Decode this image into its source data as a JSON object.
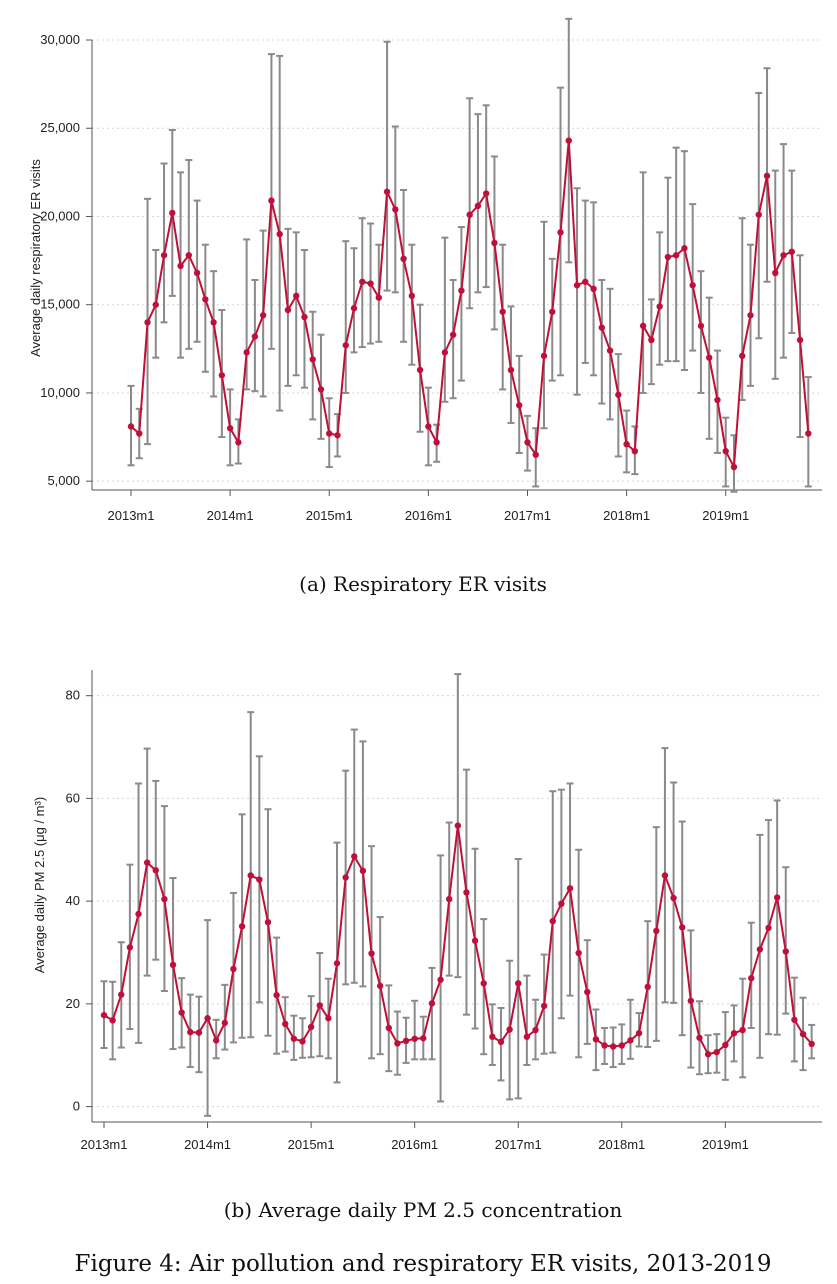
{
  "colors": {
    "series": "#c0103a",
    "errorbar": "#8a8a8a"
  },
  "panels": [
    {
      "caption": "(a) Respiratory ER visits",
      "chart_data": {
        "type": "line",
        "ylabel": "Average daily respiratory ER visits",
        "xlabel": "",
        "ylim": [
          4500,
          30000
        ],
        "yticks": [
          5000,
          10000,
          15000,
          20000,
          25000,
          30000
        ],
        "ytick_labels": [
          "5,000",
          "10,000",
          "15,000",
          "20,000",
          "25,000",
          "30,000"
        ],
        "xticks": [
          "2013m1",
          "2014m1",
          "2015m1",
          "2016m1",
          "2017m1",
          "2018m1",
          "2019m1"
        ],
        "grid": true,
        "error_bars": true,
        "x_start": "2013m1",
        "series": [
          {
            "values": [
              8100,
              7700,
              14000,
              15000,
              17800,
              20200,
              17200,
              17800,
              16800,
              15300,
              14000,
              11000,
              8000,
              7200,
              12300,
              13200,
              14400,
              20900,
              19000,
              14700,
              15500,
              14300,
              11900,
              10200,
              7700,
              7600,
              12700,
              14800,
              16300,
              16200,
              15400,
              21400,
              20400,
              17600,
              15500,
              11300,
              8100,
              7200,
              12300,
              13300,
              15800,
              20100,
              20600,
              21300,
              18500,
              14600,
              11300,
              9300,
              7200,
              6500,
              12100,
              14600,
              19100,
              24300,
              16100,
              16300,
              15900,
              13700,
              12400,
              9900,
              7100,
              6700,
              13800,
              13000,
              14900,
              17700,
              17800,
              18200,
              16100,
              13800,
              12000,
              9600,
              6700,
              5800,
              12100,
              14400,
              20100,
              22300,
              16800,
              17800,
              18000,
              13000,
              7700
            ],
            "low": [
              5900,
              6300,
              7100,
              12000,
              14000,
              15500,
              12000,
              12500,
              12900,
              11200,
              9800,
              7500,
              5900,
              6000,
              10200,
              10100,
              9800,
              12500,
              9000,
              10400,
              11000,
              10300,
              8500,
              7400,
              5800,
              6400,
              10000,
              12300,
              12600,
              12800,
              12900,
              15800,
              15700,
              12900,
              11600,
              7800,
              5900,
              6100,
              9500,
              9700,
              10700,
              14800,
              15700,
              16000,
              13600,
              10200,
              8300,
              6600,
              5600,
              4700,
              8000,
              10700,
              11000,
              17400,
              9900,
              11700,
              11000,
              9400,
              8500,
              6400,
              5500,
              5400,
              10000,
              10500,
              11600,
              11800,
              11800,
              11300,
              12400,
              10000,
              7400,
              6600,
              4700,
              4400,
              9600,
              10400,
              13100,
              16300,
              10800,
              12000,
              13400,
              7500,
              4700
            ],
            "high": [
              10400,
              9100,
              21000,
              18100,
              23000,
              24900,
              22500,
              23200,
              20900,
              18400,
              16900,
              14700,
              10200,
              8500,
              18700,
              16400,
              19200,
              29200,
              29100,
              19300,
              19100,
              18100,
              14600,
              13300,
              9700,
              8800,
              18600,
              18200,
              19900,
              19600,
              18400,
              29900,
              25100,
              21500,
              18400,
              15000,
              10300,
              8200,
              18800,
              16400,
              19400,
              26700,
              25800,
              26300,
              23400,
              18400,
              14900,
              12100,
              8700,
              8000,
              19700,
              17600,
              27300,
              31200,
              21600,
              20900,
              20800,
              16400,
              15900,
              12200,
              9000,
              8100,
              22500,
              15300,
              19100,
              22200,
              23900,
              23700,
              20700,
              16900,
              15400,
              12400,
              8600,
              7600,
              19900,
              18400,
              27000,
              28400,
              22600,
              24100,
              22600,
              17800,
              10900
            ]
          }
        ]
      }
    },
    {
      "caption": "(b) Average daily PM 2.5 concentration",
      "chart_data": {
        "type": "line",
        "ylabel": "Average daily PM 2.5 (μg / m³)",
        "xlabel": "",
        "ylim": [
          -3,
          85
        ],
        "yticks": [
          0,
          20,
          40,
          60,
          80
        ],
        "ytick_labels": [
          "0",
          "20",
          "40",
          "60",
          "80"
        ],
        "xticks": [
          "2013m1",
          "2014m1",
          "2015m1",
          "2016m1",
          "2017m1",
          "2018m1",
          "2019m1"
        ],
        "grid": true,
        "error_bars": true,
        "x_start": "2013m1",
        "series": [
          {
            "values": [
              17.8,
              16.8,
              21.8,
              31,
              37.5,
              47.5,
              46,
              40.4,
              27.6,
              18.3,
              14.5,
              14.4,
              17.2,
              12.9,
              16.3,
              26.8,
              35.1,
              45,
              44.2,
              35.9,
              21.7,
              16.1,
              13.2,
              12.7,
              15.5,
              19.7,
              17.2,
              27.9,
              44.6,
              48.7,
              45.9,
              29.8,
              23.5,
              15.3,
              12.3,
              12.8,
              13.2,
              13.3,
              20.1,
              24.7,
              40.4,
              54.7,
              41.7,
              32.3,
              24,
              13.6,
              12.6,
              15,
              24,
              13.6,
              14.9,
              19.6,
              36.1,
              39.5,
              42.5,
              29.9,
              22.3,
              13.1,
              11.9,
              11.7,
              11.9,
              12.9,
              14.3,
              23.3,
              34.2,
              45,
              40.6,
              34.9,
              20.6,
              13.4,
              10.2,
              10.6,
              12,
              14.3,
              14.9,
              25,
              30.6,
              34.8,
              40.7,
              30.2,
              16.9,
              14.1,
              12.2
            ],
            "low": [
              11.4,
              9.2,
              11.5,
              15.1,
              12.4,
              25.5,
              28.6,
              22.5,
              11.2,
              11.5,
              7.7,
              6.7,
              -1.8,
              9.4,
              11.1,
              12.5,
              13.4,
              13.5,
              20.3,
              13.8,
              10.3,
              10.7,
              9.1,
              9.5,
              9.6,
              9.8,
              9.4,
              4.7,
              23.8,
              24.1,
              23.4,
              9.4,
              10.2,
              6.9,
              6.2,
              8.5,
              9.2,
              9.2,
              9.2,
              1,
              25.5,
              25.2,
              17.9,
              15.2,
              10.2,
              8.1,
              5.1,
              1.4,
              1.6,
              8.1,
              9.2,
              10.3,
              10.5,
              17.2,
              21.6,
              9.6,
              12.2,
              7.1,
              8.3,
              7.7,
              8.3,
              9.3,
              11.7,
              11.6,
              12.8,
              20.3,
              20.2,
              13.9,
              7.6,
              6.3,
              6.5,
              6.6,
              5.2,
              8.8,
              5.7,
              15.3,
              9.5,
              14.1,
              14,
              18.1,
              8.8,
              7.1,
              9.4
            ],
            "high": [
              24.4,
              24.3,
              32,
              47.1,
              62.9,
              69.7,
              63.4,
              58.5,
              44.5,
              25,
              21.8,
              21.4,
              36.3,
              16.9,
              23.7,
              41.6,
              56.9,
              76.8,
              68.2,
              57.9,
              32.9,
              21.3,
              17.7,
              17.2,
              21.5,
              29.9,
              24.9,
              51.4,
              65.4,
              73.4,
              71.1,
              50.7,
              36.9,
              23.6,
              18.5,
              17.3,
              20.6,
              17.5,
              27,
              48.9,
              55.3,
              84.2,
              65.6,
              50.2,
              36.5,
              19.9,
              19.2,
              28.4,
              48.2,
              25.5,
              20.8,
              29.6,
              61.4,
              61.7,
              62.9,
              50,
              32.4,
              18.9,
              15.3,
              15.4,
              16,
              20.8,
              18.2,
              36.1,
              54.4,
              69.8,
              63.1,
              55.5,
              34.3,
              20.5,
              13.9,
              14.1,
              18.4,
              19.7,
              24.9,
              35.8,
              52.9,
              55.8,
              59.6,
              46.6,
              25.1,
              21.2,
              15.9
            ]
          }
        ]
      }
    }
  ],
  "figure_caption": "Figure 4: Air pollution and respiratory ER visits, 2013-2019"
}
